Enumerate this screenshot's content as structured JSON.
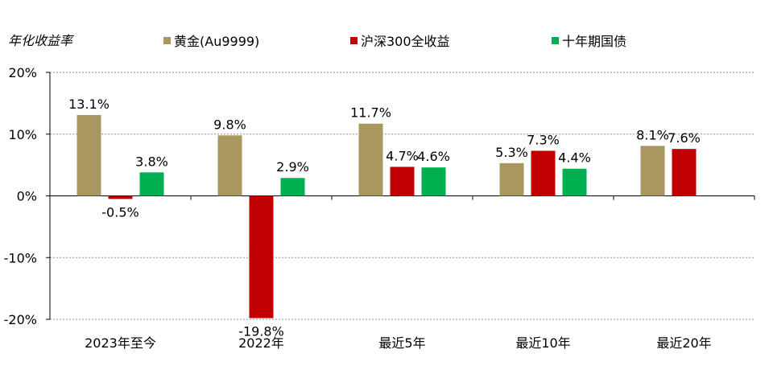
{
  "chart_data": {
    "type": "bar",
    "ylabel": "年化收益率",
    "categories": [
      "2023年至今",
      "2022年",
      "最近5年",
      "最近10年",
      "最近20年"
    ],
    "series": [
      {
        "name": "黄金(Au9999)",
        "color": "#a99760",
        "values": [
          13.1,
          9.8,
          11.7,
          5.3,
          8.1
        ],
        "labels": [
          "13.1%",
          "9.8%",
          "11.7%",
          "5.3%",
          "8.1%"
        ]
      },
      {
        "name": "沪深300全收益",
        "color": "#c00000",
        "values": [
          -0.5,
          -19.8,
          4.7,
          7.3,
          7.6
        ],
        "labels": [
          "-0.5%",
          "-19.8%",
          "4.7%",
          "7.3%",
          "7.6%"
        ]
      },
      {
        "name": "十年期国债",
        "color": "#00b050",
        "values": [
          3.8,
          2.9,
          4.6,
          4.4,
          null
        ],
        "labels": [
          "3.8%",
          "2.9%",
          "4.6%",
          "4.4%",
          ""
        ]
      }
    ],
    "ylim": [
      -20,
      20
    ],
    "yticks": [
      20,
      10,
      0,
      -10,
      -20
    ],
    "ytick_labels": [
      "20%",
      "10%",
      "0%",
      "-10%",
      "-20%"
    ],
    "grid": true,
    "legend_position": "top"
  }
}
